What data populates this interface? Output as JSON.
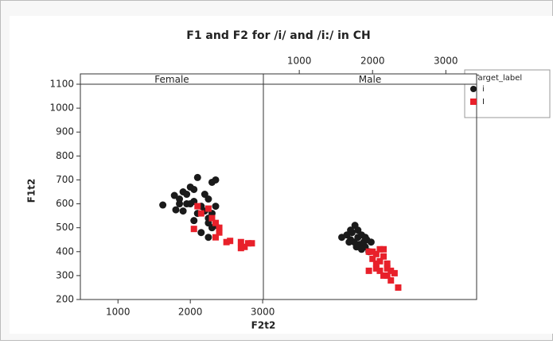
{
  "chart_data": {
    "type": "scatter",
    "title": "F1 and F2 for /i/ and /i:/ in CH",
    "xlabel": "F2t2",
    "ylabel": "F1t2",
    "legend_title": "Target_label",
    "legend": "right",
    "ylim": [
      200,
      1100
    ],
    "yticks": [
      200,
      300,
      400,
      500,
      600,
      700,
      800,
      900,
      1000,
      1100
    ],
    "panels": [
      {
        "name": "Female",
        "xlim": [
          480,
          3010
        ],
        "xticks": [
          1000,
          2000,
          3000
        ],
        "x_axis_side": "bottom",
        "series": [
          {
            "name": "i",
            "color": "#1a1a1a",
            "marker": "circle",
            "x": [
              1620,
              1780,
              1850,
              1900,
              1950,
              2000,
              2050,
              1800,
              1900,
              1950,
              2050,
              2100,
              2150,
              2200,
              2200,
              2250,
              2300,
              2350,
              2100,
              2300,
              2350,
              2250,
              2150,
              2300,
              2250,
              2050,
              2000,
              1850,
              2250,
              2350
            ],
            "values": [
              595,
              635,
              620,
              650,
              640,
              670,
              660,
              575,
              570,
              600,
              610,
              560,
              590,
              640,
              570,
              620,
              560,
              590,
              710,
              690,
              700,
              520,
              480,
              500,
              460,
              530,
              600,
              600,
              540,
              510
            ]
          },
          {
            "name": "I",
            "color": "#e8202a",
            "marker": "square",
            "x": [
              2100,
              2150,
              2250,
              2300,
              2350,
              2400,
              2400,
              2350,
              2500,
              2550,
              2700,
              2750,
              2800,
              2850,
              2050,
              2700
            ],
            "values": [
              590,
              560,
              580,
              540,
              520,
              500,
              480,
              460,
              440,
              445,
              440,
              420,
              435,
              435,
              495,
              415
            ]
          }
        ]
      },
      {
        "name": "Male",
        "xlim": [
          510,
          3420
        ],
        "xticks": [
          1000,
          2000,
          3000
        ],
        "x_axis_side": "top",
        "series": [
          {
            "name": "i",
            "color": "#1a1a1a",
            "marker": "circle",
            "x": [
              1580,
              1650,
              1700,
              1720,
              1750,
              1760,
              1800,
              1820,
              1850,
              1880,
              1900,
              1920,
              1950,
              1700,
              1780,
              1850,
              1980,
              1680,
              1800,
              1900
            ],
            "values": [
              460,
              470,
              450,
              480,
              440,
              510,
              460,
              430,
              470,
              440,
              420,
              450,
              400,
              490,
              420,
              410,
              440,
              440,
              490,
              460
            ]
          },
          {
            "name": "I",
            "color": "#e8202a",
            "marker": "square",
            "x": [
              1950,
              2000,
              2050,
              2100,
              2100,
              2150,
              2200,
              2050,
              2100,
              2150,
              2200,
              2250,
              2300,
              2250,
              2350,
              1950,
              2000,
              2150,
              2200,
              2050
            ],
            "values": [
              400,
              400,
              390,
              410,
              360,
              380,
              350,
              330,
              320,
              300,
              330,
              320,
              310,
              280,
              250,
              320,
              370,
              410,
              300,
              350
            ]
          }
        ]
      }
    ]
  }
}
